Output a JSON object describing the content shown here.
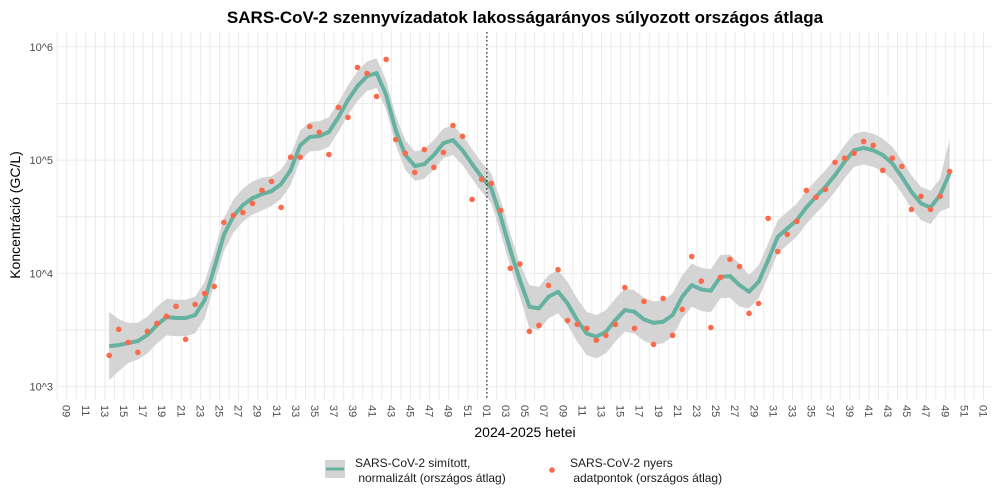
{
  "chart_data": {
    "type": "line",
    "title": "SARS-CoV-2 szennyvízadatok lakosságarányos súlyozott országos átlaga",
    "xlabel": "2024-2025 hetei",
    "ylabel": "Koncentráció (GC/L)",
    "y_scale": "log10",
    "ylim": [
      1000,
      1000000
    ],
    "y_ticks": [
      {
        "value": 1000,
        "label": "10^3"
      },
      {
        "value": 10000,
        "label": "10^4"
      },
      {
        "value": 100000,
        "label": "10^5"
      },
      {
        "value": 1000000,
        "label": "10^6"
      }
    ],
    "x_tick_labels": [
      "09",
      "11",
      "13",
      "15",
      "17",
      "19",
      "21",
      "23",
      "25",
      "27",
      "29",
      "31",
      "33",
      "35",
      "37",
      "39",
      "41",
      "43",
      "45",
      "47",
      "49",
      "51",
      "01",
      "03",
      "05",
      "07",
      "09",
      "11",
      "13",
      "15",
      "17",
      "19",
      "21",
      "23",
      "25",
      "27",
      "29",
      "31",
      "33",
      "35",
      "37",
      "39",
      "41",
      "43",
      "45",
      "47",
      "49",
      "51",
      "01"
    ],
    "grid": true,
    "legend_position": "bottom",
    "annotations": [
      {
        "type": "vertical-dotted-line",
        "x": "2025-01"
      }
    ],
    "x": [
      "2024-13",
      "2024-14",
      "2024-15",
      "2024-16",
      "2024-17",
      "2024-18",
      "2024-19",
      "2024-20",
      "2024-21",
      "2024-22",
      "2024-23",
      "2024-24",
      "2024-25",
      "2024-26",
      "2024-27",
      "2024-28",
      "2024-29",
      "2024-30",
      "2024-31",
      "2024-32",
      "2024-33",
      "2024-34",
      "2024-35",
      "2024-36",
      "2024-37",
      "2024-38",
      "2024-39",
      "2024-40",
      "2024-41",
      "2024-42",
      "2024-43",
      "2024-44",
      "2024-45",
      "2024-46",
      "2024-47",
      "2024-48",
      "2024-49",
      "2024-50",
      "2024-51",
      "2024-52",
      "2025-01",
      "2025-02",
      "2025-03",
      "2025-04",
      "2025-05",
      "2025-06",
      "2025-07",
      "2025-08",
      "2025-09",
      "2025-10",
      "2025-11",
      "2025-12",
      "2025-13",
      "2025-14",
      "2025-15",
      "2025-16",
      "2025-17",
      "2025-18",
      "2025-19",
      "2025-20",
      "2025-21",
      "2025-22",
      "2025-23",
      "2025-24",
      "2025-25",
      "2025-26",
      "2025-27",
      "2025-28",
      "2025-29",
      "2025-30",
      "2025-31",
      "2025-32",
      "2025-33",
      "2025-34",
      "2025-35",
      "2025-36",
      "2025-37",
      "2025-38",
      "2025-39",
      "2025-40",
      "2025-41",
      "2025-42",
      "2025-43",
      "2025-44",
      "2025-45",
      "2025-46",
      "2025-47",
      "2025-48",
      "2025-49"
    ],
    "series": [
      {
        "name": "SARS-CoV-2 simított,\n normalizált (országos átlag)",
        "legend_lines": [
          "SARS-CoV-2 simított,",
          " normalizált (országos átlag)"
        ],
        "kind": "smoothed-line-with-band",
        "color": "#66b2a0",
        "band_color": "#d4d4d4",
        "values": [
          2280,
          2330,
          2430,
          2530,
          2860,
          3500,
          4120,
          4040,
          4040,
          4290,
          5820,
          11150,
          21800,
          32000,
          40100,
          46200,
          50100,
          53200,
          61400,
          81600,
          135000,
          160000,
          163000,
          177000,
          239000,
          338000,
          450000,
          551000,
          586000,
          375000,
          184000,
          111000,
          88500,
          92300,
          111000,
          141000,
          150000,
          122000,
          92300,
          70800,
          56600,
          31600,
          16100,
          8730,
          5080,
          4910,
          6220,
          6890,
          5430,
          3870,
          2950,
          2760,
          3050,
          3870,
          4750,
          4580,
          3920,
          3660,
          3740,
          4290,
          6220,
          7890,
          7220,
          7030,
          9330,
          9460,
          7890,
          6890,
          8430,
          13100,
          21000,
          24900,
          29500,
          38200,
          47400,
          58100,
          73700,
          96500,
          122000,
          128000,
          122000,
          111000,
          93600,
          71300,
          52500,
          41500,
          38200,
          49100,
          76400
        ],
        "lower": [
          1140,
          1370,
          1620,
          1740,
          1970,
          2410,
          2840,
          2790,
          2790,
          2960,
          4010,
          7960,
          15600,
          22900,
          28600,
          33000,
          35800,
          39400,
          45500,
          60400,
          100000,
          119000,
          121000,
          131000,
          177000,
          250000,
          333000,
          408000,
          434000,
          278000,
          136000,
          82200,
          65600,
          68400,
          82200,
          104000,
          111000,
          90400,
          68400,
          52400,
          41900,
          22600,
          11500,
          6240,
          3280,
          3170,
          4010,
          4450,
          3500,
          2500,
          1900,
          1780,
          1970,
          2500,
          3060,
          2950,
          2530,
          2360,
          2410,
          2770,
          4010,
          5090,
          4660,
          4540,
          6020,
          6100,
          5090,
          4920,
          6020,
          9360,
          15000,
          17800,
          21100,
          27300,
          33900,
          41500,
          52600,
          68900,
          87100,
          91400,
          87100,
          79300,
          66900,
          50900,
          37500,
          29600,
          27300,
          35100,
          38200
        ],
        "upper": [
          4560,
          3960,
          3650,
          3670,
          4150,
          5080,
          5970,
          5860,
          5860,
          6220,
          8440,
          15600,
          30500,
          44800,
          56100,
          64700,
          70100,
          71800,
          82900,
          110000,
          182000,
          216000,
          220000,
          239000,
          323000,
          456000,
          608000,
          744000,
          791000,
          506000,
          248000,
          150000,
          119000,
          125000,
          150000,
          190000,
          203000,
          165000,
          125000,
          95600,
          76400,
          44200,
          22500,
          12200,
          7870,
          7610,
          9640,
          10700,
          8420,
          6000,
          4570,
          4280,
          4730,
          6000,
          7360,
          7100,
          6080,
          5670,
          5800,
          6650,
          9640,
          12200,
          11200,
          10900,
          14500,
          14700,
          12200,
          9650,
          11800,
          18300,
          29400,
          34900,
          41300,
          53500,
          66400,
          81300,
          103000,
          135000,
          171000,
          179000,
          171000,
          155000,
          131000,
          99800,
          73500,
          58100,
          53500,
          68700,
          153000
        ]
      },
      {
        "name": "SARS-CoV-2 nyers\n adatpontok (országos átlag)",
        "legend_lines": [
          "SARS-CoV-2 nyers",
          " adatpontok (országos átlag)"
        ],
        "kind": "points",
        "color": "#fa6a4b",
        "values": [
          1890,
          3210,
          2460,
          2010,
          3080,
          3620,
          4180,
          5120,
          2620,
          5320,
          6660,
          7670,
          28200,
          32500,
          34500,
          41500,
          54100,
          64900,
          38200,
          106000,
          106000,
          198000,
          176000,
          112000,
          292000,
          238000,
          658000,
          582000,
          365000,
          774000,
          152000,
          115000,
          77800,
          124000,
          86300,
          117000,
          202000,
          162000,
          45000,
          67600,
          62300,
          36000,
          11100,
          12100,
          3080,
          3480,
          7840,
          10800,
          3840,
          3550,
          3270,
          2570,
          2840,
          3550,
          7510,
          3270,
          5660,
          2360,
          6010,
          2840,
          4810,
          14100,
          8550,
          3330,
          9230,
          13300,
          11500,
          4440,
          5430,
          30600,
          15600,
          22100,
          28800,
          54000,
          46900,
          55100,
          95500,
          104000,
          115000,
          146000,
          135000,
          81100,
          104000,
          87900,
          36700,
          47900,
          36700,
          47900,
          79400
        ]
      }
    ]
  }
}
